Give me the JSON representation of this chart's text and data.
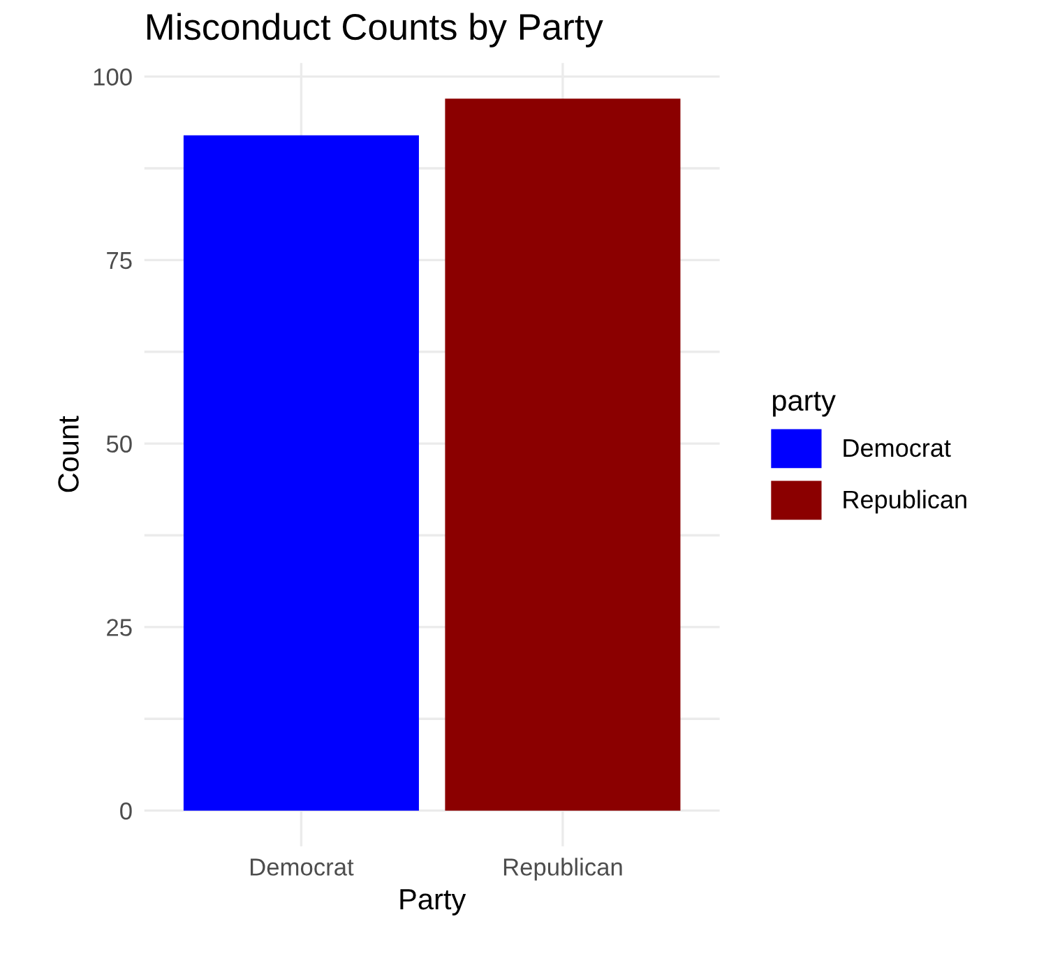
{
  "chart_data": {
    "type": "bar",
    "title": "Misconduct Counts by Party",
    "xlabel": "Party",
    "ylabel": "Count",
    "legend_title": "party",
    "categories": [
      "Democrat",
      "Republican"
    ],
    "series": [
      {
        "name": "Democrat",
        "color": "#0000ff",
        "values": [
          92,
          null
        ]
      },
      {
        "name": "Republican",
        "color": "#8b0000",
        "values": [
          null,
          97
        ]
      }
    ],
    "ylim": [
      -4.85,
      101.85
    ],
    "yticks": [
      0,
      {
        "value": 12.5,
        "label": null
      },
      25,
      {
        "value": 37.5,
        "label": null
      },
      50,
      {
        "value": 62.5,
        "label": null
      },
      75,
      {
        "value": 87.5,
        "label": null
      },
      100
    ],
    "grid": true,
    "legend": "right"
  }
}
